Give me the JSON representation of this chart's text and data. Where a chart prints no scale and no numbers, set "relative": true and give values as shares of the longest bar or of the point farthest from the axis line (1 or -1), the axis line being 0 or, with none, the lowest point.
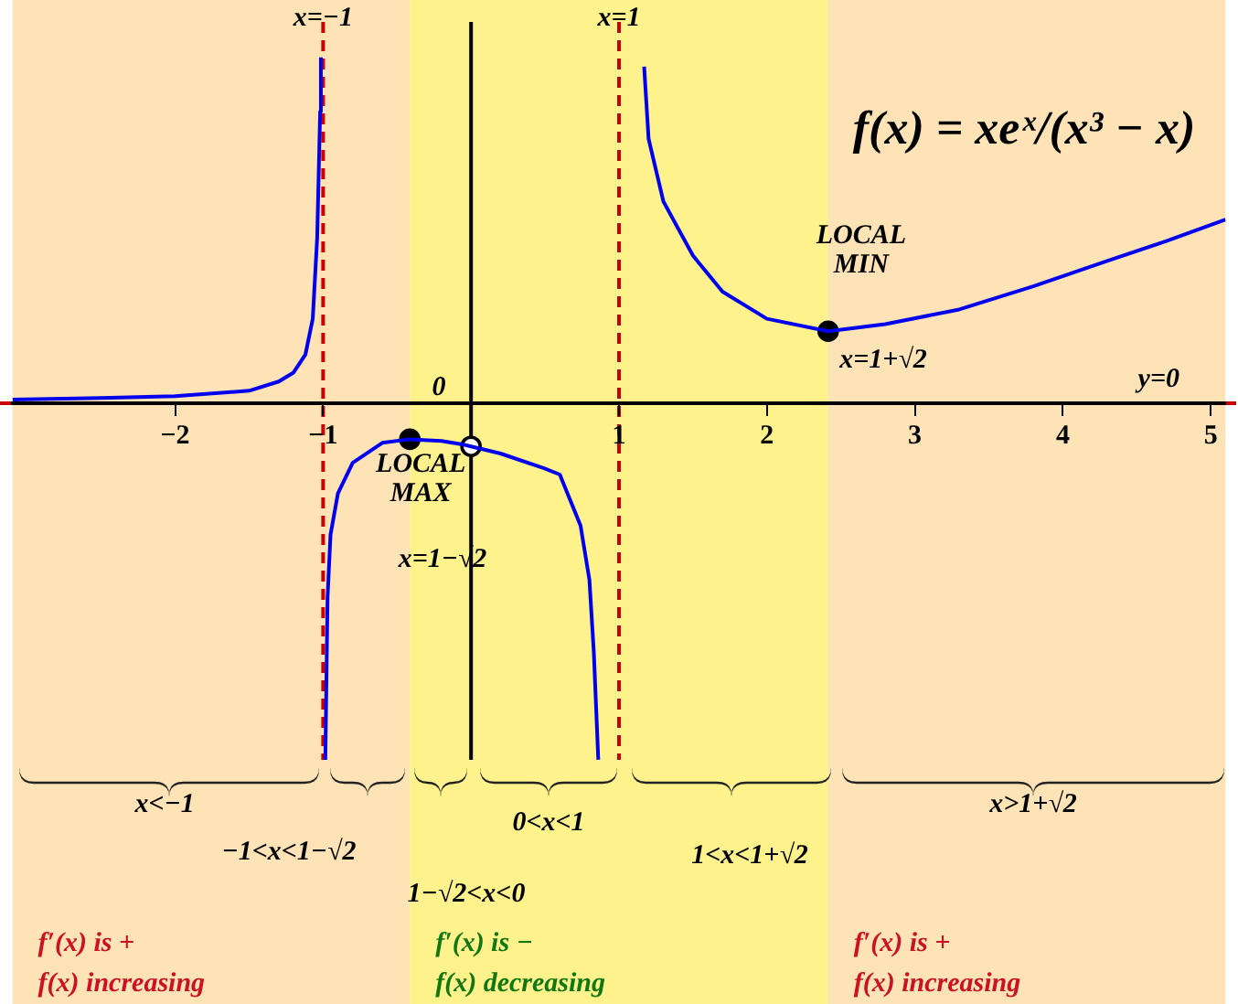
{
  "chart_data": {
    "type": "line",
    "title": "f(x) = xeˣ/(x³ − x)",
    "relative": true,
    "legend": false,
    "grid": false,
    "marker": "none",
    "xlim": [
      -3.1,
      5.1
    ],
    "xticks": [
      {
        "value": -2,
        "label": "−2"
      },
      {
        "value": -1,
        "label": "−1"
      },
      1,
      2,
      3,
      4,
      5
    ],
    "series": [
      {
        "type": "line",
        "color": "#0000ee",
        "x": [
          -3.1,
          -2.5,
          -2,
          -1.5,
          -1.3,
          -1.2,
          -1.12,
          -1.07,
          -1.04,
          -1.02,
          -1.015
        ],
        "values": [
          0.01,
          0.015,
          0.02,
          0.035,
          0.061,
          0.086,
          0.136,
          0.237,
          0.465,
          0.818,
          0.97
        ]
      },
      {
        "type": "line",
        "color": "#0000ee",
        "x": [
          -0.985,
          -0.97,
          -0.95,
          -0.9,
          -0.8,
          -0.6,
          -0.414,
          -0.2,
          -0.05,
          0,
          0.2,
          0.49,
          0.6,
          0.74,
          0.8,
          0.83,
          0.86
        ],
        "values": [
          -1,
          -0.545,
          -0.369,
          -0.253,
          -0.167,
          -0.111,
          -0.101,
          -0.106,
          -0.116,
          -0.121,
          -0.141,
          -0.182,
          -0.2,
          -0.343,
          -0.495,
          -0.7,
          -1
        ]
      },
      {
        "type": "line",
        "color": "#0000ee",
        "x": [
          1.17,
          1.2,
          1.3,
          1.5,
          1.7,
          2,
          2.414,
          2.8,
          3.3,
          3.8,
          4.3,
          4.7,
          5.1
        ],
        "values": [
          0.944,
          0.742,
          0.566,
          0.414,
          0.313,
          0.237,
          0.202,
          0.222,
          0.263,
          0.328,
          0.399,
          0.455,
          0.515
        ]
      },
      {
        "type": "scatter",
        "marker": "circle",
        "color": "#000000",
        "x": [
          -0.414,
          2.414
        ],
        "values": [
          -0.101,
          0.202
        ]
      },
      {
        "type": "scatter",
        "marker": "circle",
        "color": "#ffffff",
        "x": [
          0
        ],
        "values": [
          -0.121
        ]
      }
    ],
    "ref_lines": [
      {
        "axis": "x",
        "value": 0,
        "color": "#000000",
        "line_style": "solid"
      },
      {
        "axis": "x",
        "value": -1,
        "label": "x=−1",
        "color": "#cc0000",
        "line_style": "dashed"
      },
      {
        "axis": "x",
        "value": 1,
        "label": "x=1",
        "color": "#cc0000",
        "line_style": "dashed"
      },
      {
        "axis": "y",
        "value": 0,
        "label": "y=0",
        "color": "#cc0000",
        "line_style": "dashed"
      }
    ],
    "bands": [
      {
        "axis": "x",
        "from": -3.1,
        "to": -0.414,
        "color": "#fde3b6",
        "label": "f′(x) is +\nf(x) increasing"
      },
      {
        "axis": "x",
        "from": -0.414,
        "to": 2.414,
        "color": "#fdf28c",
        "label": "f′(x) is −\nf(x) decreasing"
      },
      {
        "axis": "x",
        "from": 2.414,
        "to": 5.1,
        "color": "#fde3b6",
        "label": "f′(x) is +\nf(x) increasing"
      }
    ],
    "annotations": [
      {
        "text": "LOCAL MIN",
        "x": 2.414,
        "y": 0.202
      },
      {
        "text": "LOCAL MAX",
        "x": -0.414,
        "y": -0.101
      },
      "x=1+√2",
      "x=1−√2",
      "0",
      "x<−1",
      "−1<x<1−√2",
      "1−√2<x<0",
      "0<x<1",
      "1<x<1+√2",
      "x>1+√2"
    ]
  }
}
